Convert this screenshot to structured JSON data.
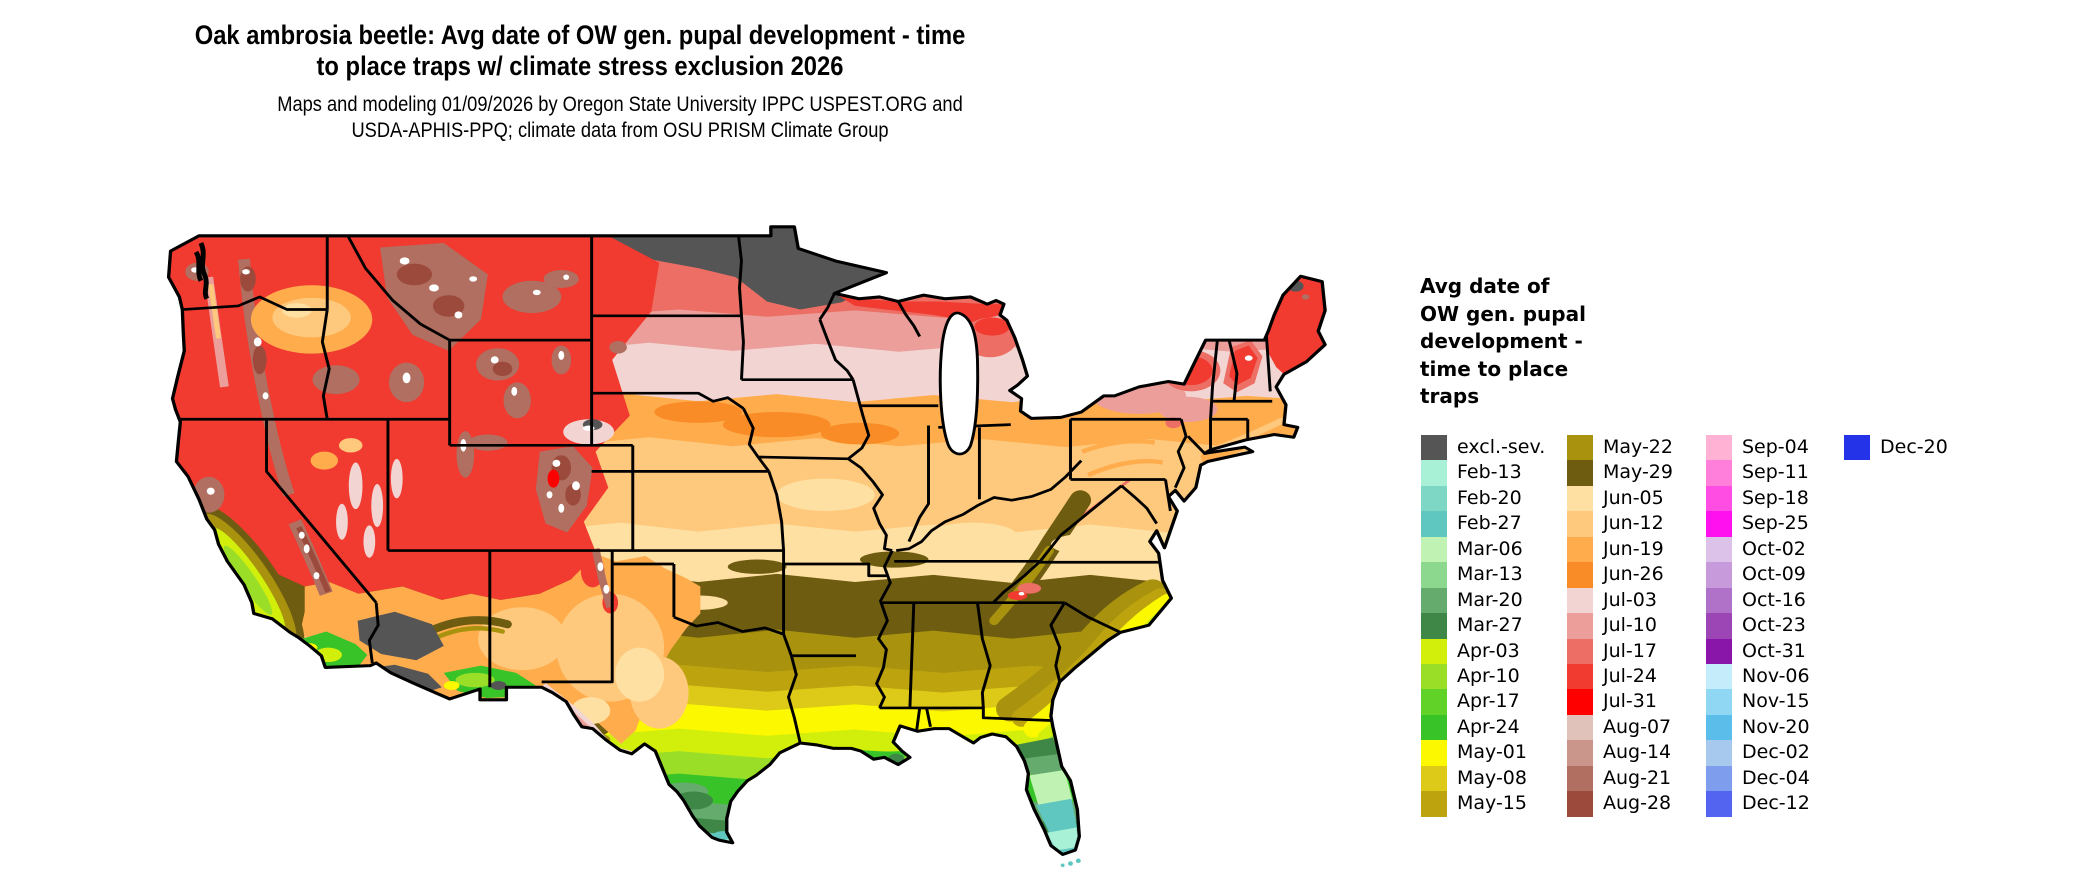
{
  "title": "Oak ambrosia beetle: Avg date of OW gen. pupal development - time\nto place traps w/ climate stress exclusion 2026",
  "subtitle": "Maps and modeling 01/09/2026 by Oregon State University IPPC USPEST.ORG and\nUSDA-APHIS-PPQ; climate data from OSU PRISM Climate Group",
  "legend": {
    "title": "Avg date of\nOW gen. pupal\ndevelopment -\ntime to place\ntraps",
    "columns": [
      [
        {
          "label": "excl.-sev.",
          "color": "#555555"
        },
        {
          "label": "Feb-13",
          "color": "#a8f0d6"
        },
        {
          "label": "Feb-20",
          "color": "#7ed7c5"
        },
        {
          "label": "Feb-27",
          "color": "#5fc6c0"
        },
        {
          "label": "Mar-06",
          "color": "#c0f2b4"
        },
        {
          "label": "Mar-13",
          "color": "#8bd88e"
        },
        {
          "label": "Mar-20",
          "color": "#66ab6e"
        },
        {
          "label": "Mar-27",
          "color": "#3e8746"
        },
        {
          "label": "Apr-03",
          "color": "#d2ef0c"
        },
        {
          "label": "Apr-10",
          "color": "#9ade28"
        },
        {
          "label": "Apr-17",
          "color": "#60d228"
        },
        {
          "label": "Apr-24",
          "color": "#38c428"
        },
        {
          "label": "May-01",
          "color": "#fcf800"
        },
        {
          "label": "May-08",
          "color": "#ddca18"
        },
        {
          "label": "May-15",
          "color": "#bda40e"
        }
      ],
      [
        {
          "label": "May-22",
          "color": "#a8920e"
        },
        {
          "label": "May-29",
          "color": "#6e5c10"
        },
        {
          "label": "Jun-05",
          "color": "#ffe0a3"
        },
        {
          "label": "Jun-12",
          "color": "#fec97c"
        },
        {
          "label": "Jun-19",
          "color": "#ffac4d"
        },
        {
          "label": "Jun-26",
          "color": "#f98c26"
        },
        {
          "label": "Jul-03",
          "color": "#f2d5d3"
        },
        {
          "label": "Jul-10",
          "color": "#ec9e9a"
        },
        {
          "label": "Jul-17",
          "color": "#ec6e64"
        },
        {
          "label": "Jul-24",
          "color": "#f13a30"
        },
        {
          "label": "Jul-31",
          "color": "#ff0000"
        },
        {
          "label": "Aug-07",
          "color": "#e0c2bb"
        },
        {
          "label": "Aug-14",
          "color": "#ca968c"
        },
        {
          "label": "Aug-21",
          "color": "#b06f60"
        },
        {
          "label": "Aug-28",
          "color": "#9c4a3c"
        }
      ],
      [
        {
          "label": "Sep-04",
          "color": "#ffb2d4"
        },
        {
          "label": "Sep-11",
          "color": "#ff7fdb"
        },
        {
          "label": "Sep-18",
          "color": "#ff4de4"
        },
        {
          "label": "Sep-25",
          "color": "#ff10ee"
        },
        {
          "label": "Oct-02",
          "color": "#dcc2e9"
        },
        {
          "label": "Oct-09",
          "color": "#c79bdb"
        },
        {
          "label": "Oct-16",
          "color": "#b071c9"
        },
        {
          "label": "Oct-23",
          "color": "#9c46b5"
        },
        {
          "label": "Oct-31",
          "color": "#8a16a9"
        },
        {
          "label": "Nov-06",
          "color": "#c4ecfa"
        },
        {
          "label": "Nov-15",
          "color": "#90d7f3"
        },
        {
          "label": "Nov-20",
          "color": "#5bbde9"
        },
        {
          "label": "Dec-02",
          "color": "#a7c9ee"
        },
        {
          "label": "Dec-04",
          "color": "#7e9dec"
        },
        {
          "label": "Dec-12",
          "color": "#5364f0"
        }
      ],
      [
        {
          "label": "Dec-20",
          "color": "#2433e8"
        }
      ]
    ]
  },
  "map": {
    "region": "contiguous United States",
    "border_color": "#000000",
    "water_color": "#ffffff",
    "excluded_color": "#555555"
  }
}
